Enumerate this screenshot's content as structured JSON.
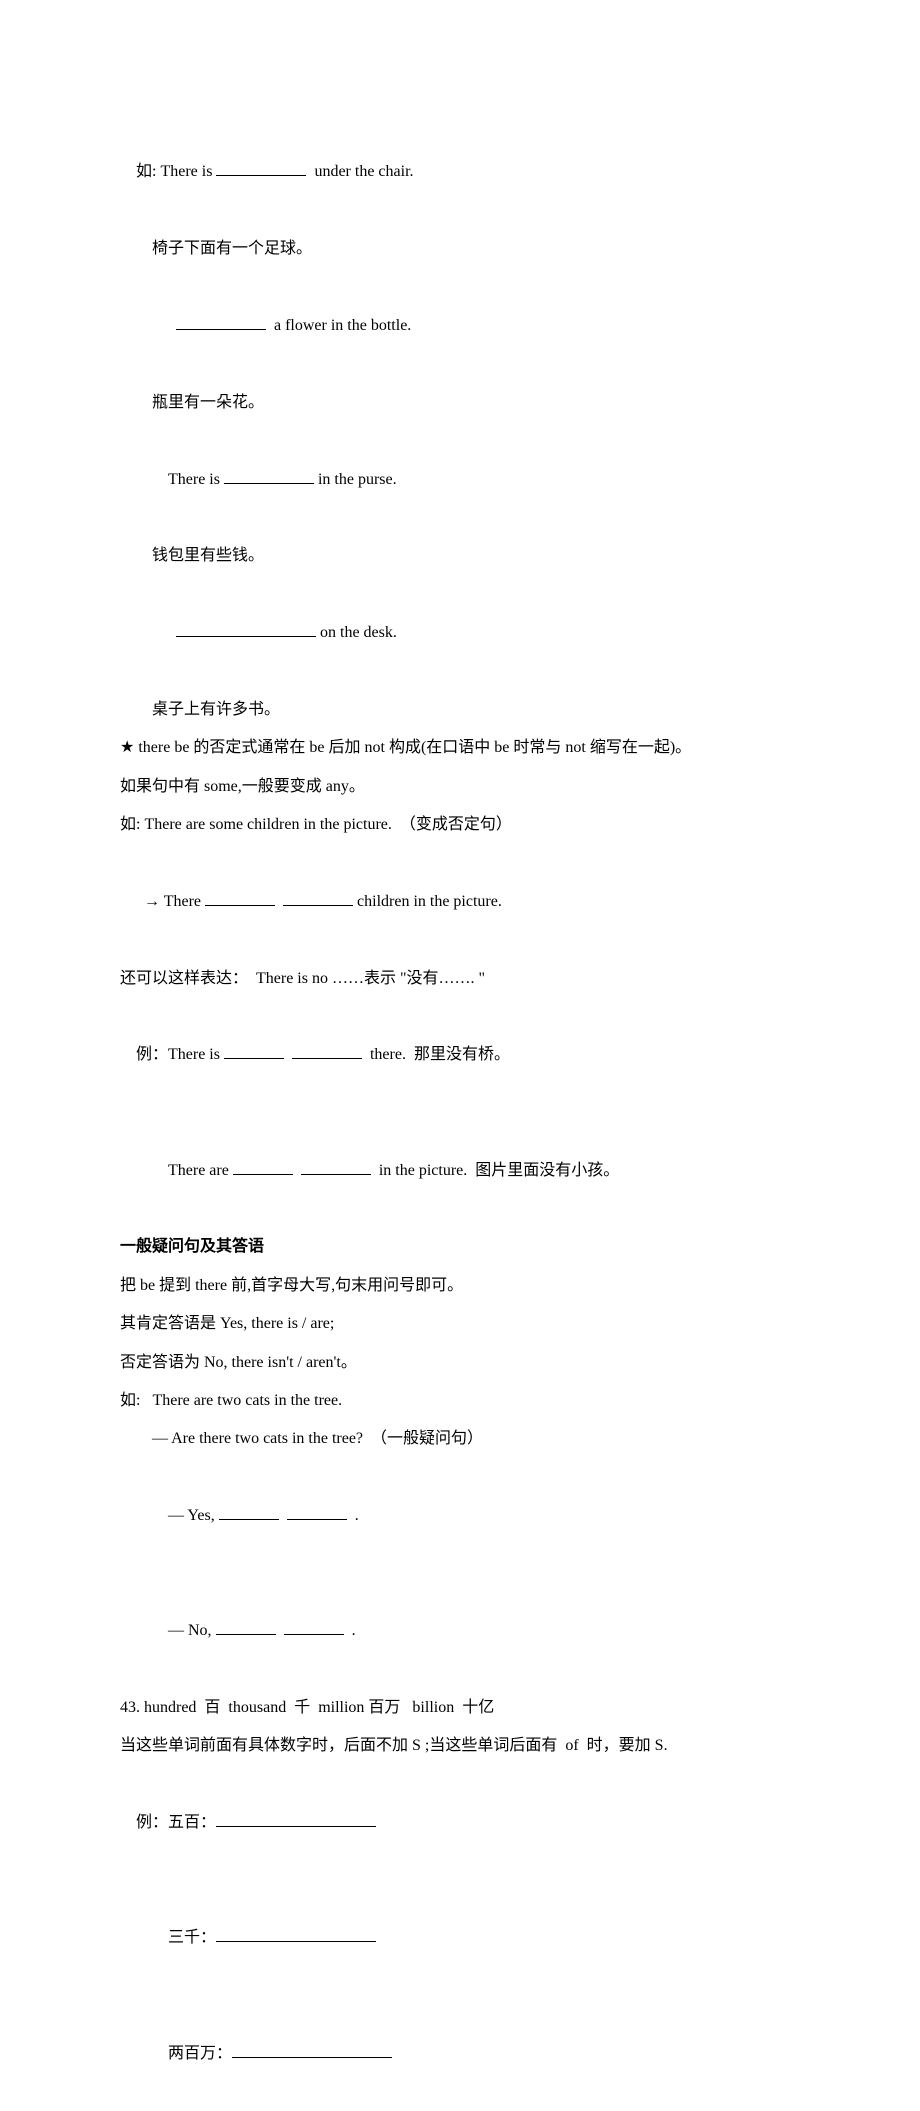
{
  "l1a": "如: There is ",
  "l1b": "  under the chair.",
  "l2": "椅子下面有一个足球。",
  "l3b": "  a flower in the bottle.",
  "l4": "瓶里有一朵花。",
  "l5a": "There is ",
  "l5b": " in the purse.",
  "l6": "钱包里有些钱。",
  "l7b": " on the desk.",
  "l8": "桌子上有许多书。",
  "l9": "★ there be 的否定式通常在 be 后加 not 构成(在口语中 be 时常与 not 缩写在一起)。",
  "l10": "如果句中有 some,一般要变成 any。",
  "l11": "如: There are some children in the picture.  （变成否定句）",
  "l12a": "  → There ",
  "l12b": " children in the picture.",
  "l13": "还可以这样表达：  There is no ……表示 \"没有……. \"",
  "l14a": "例：There is ",
  "l14b": "  there.  那里没有桥。",
  "l15a": "There are ",
  "l15b": "  in the picture.  图片里面没有小孩。",
  "l16": "一般疑问句及其答语",
  "l17": "把 be 提到 there 前,首字母大写,句末用问号即可。",
  "l18": "其肯定答语是 Yes, there is / are;",
  "l19": "否定答语为 No, there isn't / aren't。",
  "l20": "如:   There are two cats in the tree.",
  "l21": "— Are there two cats in the tree?  （一般疑问句）",
  "l22a": "— Yes, ",
  "l22b": "  .",
  "l23a": "— No, ",
  "l23b": "  .",
  "l24": "43. hundred  百  thousand  千  million 百万   billion  十亿",
  "l25": "当这些单词前面有具体数字时，后面不加 S ;当这些单词后面有  of  时，要加 S.",
  "l26a": "例：五百：",
  "l27a": "三千：",
  "l28a": "两百万："
}
